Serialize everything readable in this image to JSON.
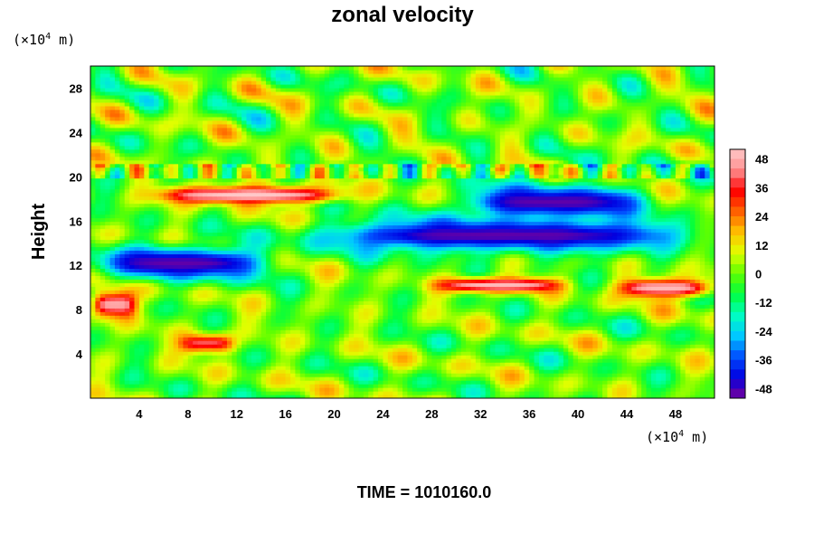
{
  "chart_data": {
    "type": "heatmap",
    "title": "zonal velocity",
    "xlabel": "",
    "ylabel": "Height",
    "x_unit": "(×10",
    "x_unit_exp": "4",
    "x_unit_tail": " m)",
    "y_unit": "(×10",
    "y_unit_exp": "4",
    "y_unit_tail": " m)",
    "xlim": [
      0,
      51.2
    ],
    "ylim": [
      0,
      30
    ],
    "x_ticks": [
      4,
      8,
      12,
      16,
      20,
      24,
      28,
      32,
      36,
      40,
      44,
      48
    ],
    "y_ticks": [
      4,
      8,
      12,
      16,
      20,
      24,
      28
    ],
    "colorbar": {
      "range": [
        -52,
        52
      ],
      "ticks": [
        48,
        36,
        24,
        12,
        0,
        -12,
        -24,
        -36,
        -48
      ]
    },
    "footer": "TIME = 1010160.0",
    "features": [
      {
        "kind": "strong_negative",
        "x": [
          18,
          50
        ],
        "y": [
          13,
          16.5
        ],
        "value": -50
      },
      {
        "kind": "strong_negative",
        "x": [
          30,
          46
        ],
        "y": [
          16,
          19.5
        ],
        "value": -50
      },
      {
        "kind": "strong_negative",
        "x": [
          0,
          15
        ],
        "y": [
          10.5,
          14
        ],
        "value": -50
      },
      {
        "kind": "strong_positive",
        "x": [
          5,
          21
        ],
        "y": [
          17.5,
          19.3
        ],
        "value": 52
      },
      {
        "kind": "strong_positive",
        "x": [
          28,
          39
        ],
        "y": [
          9.5,
          11
        ],
        "value": 50
      },
      {
        "kind": "strong_positive",
        "x": [
          43,
          51.2
        ],
        "y": [
          9,
          11
        ],
        "value": 50
      },
      {
        "kind": "strong_positive",
        "x": [
          0,
          4
        ],
        "y": [
          7,
          10
        ],
        "value": 48
      },
      {
        "kind": "positive",
        "x": [
          7,
          12
        ],
        "y": [
          4,
          6
        ],
        "value": 40
      }
    ]
  },
  "colors": {
    "colormap": [
      "#7a009a",
      "#0000e0",
      "#0050ff",
      "#00c8ff",
      "#00ffc0",
      "#00ff40",
      "#60ff00",
      "#e0ff00",
      "#ffc000",
      "#ff6000",
      "#ff0000",
      "#ff8f8f",
      "#ffc8c8"
    ]
  }
}
